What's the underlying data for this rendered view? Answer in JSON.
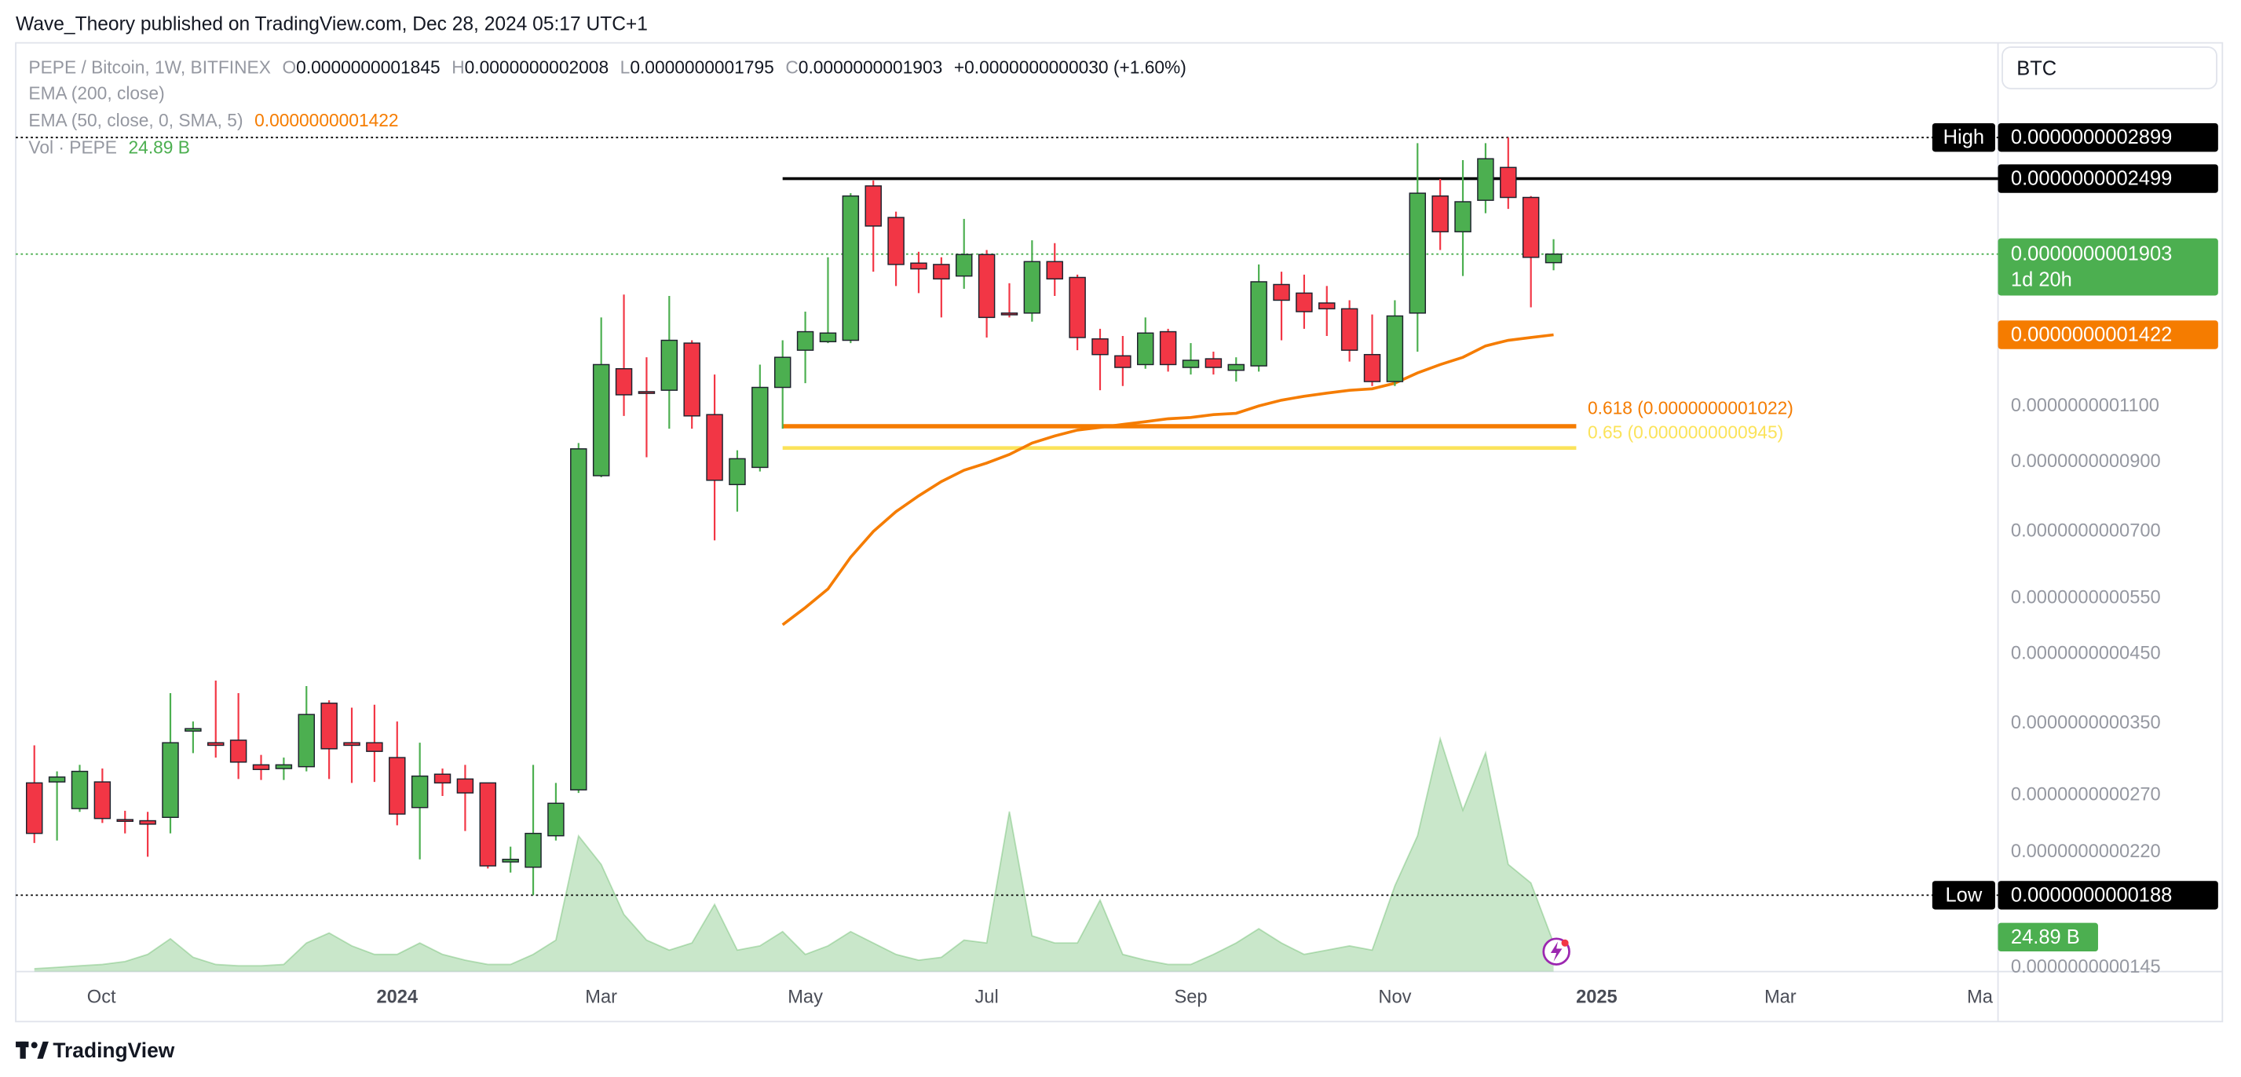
{
  "header": {
    "publisher": "Wave_Theory published on TradingView.com, Dec 28, 2024 05:17 UTC+1"
  },
  "toolbar": {
    "currency": "BTC"
  },
  "footer": {
    "brand": "TradingView"
  },
  "chart_data": {
    "type": "candlestick",
    "legend": {
      "symbol": "PEPE / Bitcoin, 1W, BITFINEX",
      "ohlc": [
        {
          "key": "O",
          "value": "0.0000000001845"
        },
        {
          "key": "H",
          "value": "0.0000000002008"
        },
        {
          "key": "L",
          "value": "0.0000000001795"
        },
        {
          "key": "C",
          "value": "0.0000000001903"
        }
      ],
      "change": "+0.0000000000030 (+1.60%)",
      "indicators": [
        {
          "name": "EMA (200, close)"
        },
        {
          "name": "EMA (50, close, 0, SMA, 5)",
          "value": "0.0000000001422"
        },
        {
          "name": "Vol · PEPE",
          "value": "24.89 B"
        }
      ]
    },
    "countdown": "1d 20h",
    "categories": [
      null,
      null,
      null,
      null,
      null,
      null,
      null,
      null,
      null,
      null,
      null,
      null,
      null,
      null,
      null,
      null,
      null,
      null,
      null,
      null,
      null,
      null,
      null,
      null,
      null,
      null,
      null,
      null,
      null,
      null,
      null,
      null,
      null,
      null,
      null,
      null,
      null,
      null,
      null,
      null,
      null,
      null,
      null,
      null,
      null,
      null,
      null,
      null,
      null,
      null,
      null,
      null,
      null,
      null,
      null,
      null,
      null,
      null,
      null,
      null,
      null,
      null,
      null,
      null,
      null,
      null,
      null,
      null
    ],
    "open": [
      2.82e-11,
      2.83e-11,
      2.57e-11,
      2.83e-11,
      2.47e-11,
      2.46e-11,
      2.49e-11,
      3.4e-11,
      3.26e-11,
      3.29e-11,
      3.01e-11,
      2.97e-11,
      2.99e-11,
      3.76e-11,
      3.26e-11,
      3.26e-11,
      3.09e-11,
      2.58e-11,
      2.91e-11,
      2.86e-11,
      2.82e-11,
      2.12e-11,
      2.08e-11,
      2.33e-11,
      2.75e-11,
      8.55e-11,
      1.258e-10,
      1.158e-10,
      1.164e-10,
      1.38e-10,
      1.066e-10,
      8.28e-11,
      8.81e-11,
      1.176e-10,
      1.345e-10,
      1.387e-10,
      1.394e-10,
      2.434e-10,
      2.172e-10,
      1.842e-10,
      1.833e-10,
      1.758e-10,
      1.9e-10,
      1.538e-10,
      1.538e-10,
      1.852e-10,
      1.749e-10,
      1.401e-10,
      1.318e-10,
      1.277e-10,
      1.438e-10,
      1.264e-10,
      1.304e-10,
      1.251e-10,
      1.271e-10,
      1.705e-10,
      1.653e-10,
      1.595e-10,
      1.562e-10,
      1.324e-10,
      1.201e-10,
      1.538e-10,
      2.347e-10,
      2.063e-10,
      2.311e-10,
      2.602e-10,
      2.335e-10,
      1.845e-10
    ],
    "high": [
      3.23e-11,
      2.94e-11,
      3.01e-11,
      2.97e-11,
      2.55e-11,
      2.54e-11,
      3.9e-11,
      3.52e-11,
      4.08e-11,
      3.9e-11,
      3.12e-11,
      3.09e-11,
      4e-11,
      3.8e-11,
      3.7e-11,
      3.74e-11,
      3.52e-11,
      3.26e-11,
      2.97e-11,
      3.01e-11,
      2.82e-11,
      2.24e-11,
      3.01e-11,
      2.82e-11,
      9.62e-11,
      1.514e-10,
      1.644e-10,
      1.311e-10,
      1.636e-10,
      1.394e-10,
      1.232e-10,
      9.37e-11,
      1.277e-10,
      1.394e-10,
      1.546e-10,
      1.881e-10,
      2.371e-10,
      2.483e-10,
      2.218e-10,
      1.919e-10,
      1.881e-10,
      2.161e-10,
      1.931e-10,
      1.713e-10,
      2e-10,
      1.98e-10,
      1.767e-10,
      1.453e-10,
      1.416e-10,
      1.514e-10,
      1.453e-10,
      1.38e-10,
      1.338e-10,
      1.311e-10,
      1.833e-10,
      1.786e-10,
      1.767e-10,
      1.696e-10,
      1.611e-10,
      1.53e-10,
      1.611e-10,
      2.84e-10,
      2.497e-10,
      2.672e-10,
      2.84e-10,
      2.899e-10,
      2.347e-10,
      2.008e-10
    ],
    "low": [
      2.27e-11,
      2.29e-11,
      2.54e-11,
      2.44e-11,
      2.35e-11,
      2.16e-11,
      2.35e-11,
      3.14e-11,
      3.09e-11,
      2.86e-11,
      2.85e-11,
      2.85e-11,
      2.94e-11,
      2.86e-11,
      2.82e-11,
      2.83e-11,
      2.42e-11,
      2.14e-11,
      2.69e-11,
      2.37e-11,
      2.07e-11,
      2.04e-11,
      1.88e-11,
      2.29e-11,
      2.72e-11,
      8.5e-11,
      1.061e-10,
      9.14e-11,
      1.013e-10,
      1.013e-10,
      6.77e-11,
      7.51e-11,
      8.68e-11,
      1.013e-10,
      1.194e-10,
      1.38e-10,
      1.38e-10,
      1.786e-10,
      1.696e-10,
      1.653e-10,
      1.514e-10,
      1.679e-10,
      1.408e-10,
      1.514e-10,
      1.491e-10,
      1.636e-10,
      1.345e-10,
      1.164e-10,
      1.182e-10,
      1.258e-10,
      1.245e-10,
      1.232e-10,
      1.232e-10,
      1.201e-10,
      1.245e-10,
      1.394e-10,
      1.453e-10,
      1.416e-10,
      1.291e-10,
      1.182e-10,
      1.182e-10,
      1.338e-10,
      1.931e-10,
      1.758e-10,
      2.206e-10,
      2.24e-10,
      1.57e-10,
      1.795e-10
    ],
    "close": [
      2.35e-11,
      2.88e-11,
      2.94e-11,
      2.48e-11,
      2.46e-11,
      2.43e-11,
      3.26e-11,
      3.43e-11,
      3.23e-11,
      3.04e-11,
      2.96e-11,
      3.01e-11,
      3.61e-11,
      3.19e-11,
      3.23e-11,
      3.16e-11,
      2.52e-11,
      2.89e-11,
      2.82e-11,
      2.72e-11,
      2.09e-11,
      2.14e-11,
      2.35e-11,
      2.62e-11,
      9.42e-11,
      1.277e-10,
      1.145e-10,
      1.152e-10,
      1.394e-10,
      1.061e-10,
      8.41e-11,
      9.09e-11,
      1.176e-10,
      1.311e-10,
      1.438e-10,
      1.431e-10,
      2.347e-10,
      2.106e-10,
      1.833e-10,
      1.804e-10,
      1.74e-10,
      1.9e-10,
      1.514e-10,
      1.53e-10,
      1.852e-10,
      1.74e-10,
      1.408e-10,
      1.324e-10,
      1.264e-10,
      1.431e-10,
      1.277e-10,
      1.297e-10,
      1.264e-10,
      1.277e-10,
      1.722e-10,
      1.611e-10,
      1.546e-10,
      1.562e-10,
      1.345e-10,
      1.201e-10,
      1.522e-10,
      2.371e-10,
      2.063e-10,
      2.299e-10,
      2.685e-10,
      2.335e-10,
      1.881e-10,
      1.903e-10
    ],
    "up_color": "#4caf50",
    "down_color": "#f23645",
    "ema": {
      "color": "#f57c00",
      "values": [
        null,
        null,
        null,
        null,
        null,
        null,
        null,
        null,
        null,
        null,
        null,
        null,
        null,
        null,
        null,
        null,
        null,
        null,
        null,
        null,
        null,
        null,
        null,
        null,
        null,
        null,
        null,
        null,
        null,
        null,
        null,
        null,
        null,
        4.99e-11,
        5.31e-11,
        5.68e-11,
        6.37e-11,
        6.99e-11,
        7.51e-11,
        7.95e-11,
        8.37e-11,
        8.72e-11,
        8.95e-11,
        9.23e-11,
        9.62e-11,
        9.87e-11,
        1.008e-10,
        1.018e-10,
        1.029e-10,
        1.039e-10,
        1.05e-10,
        1.055e-10,
        1.066e-10,
        1.071e-10,
        1.1e-10,
        1.123e-10,
        1.139e-10,
        1.152e-10,
        1.164e-10,
        1.17e-10,
        1.194e-10,
        1.239e-10,
        1.277e-10,
        1.311e-10,
        1.366e-10,
        1.394e-10,
        1.408e-10,
        1.422e-10
      ]
    },
    "volume": {
      "color": "#4caf50",
      "vlim": [
        0,
        248
      ],
      "values": [
        2.5,
        3.7,
        5.0,
        6.2,
        8.7,
        14.9,
        28.5,
        12.4,
        6.2,
        5.0,
        5.0,
        6.2,
        24.8,
        33.5,
        22.3,
        14.9,
        14.9,
        24.8,
        14.9,
        9.9,
        6.2,
        6.2,
        14.9,
        27.3,
        117.8,
        93.0,
        49.6,
        27.3,
        18.6,
        24.8,
        58.3,
        18.6,
        22.3,
        34.7,
        14.9,
        22.3,
        34.7,
        24.8,
        14.9,
        9.9,
        12.4,
        27.3,
        24.8,
        138.9,
        31.0,
        24.8,
        24.8,
        62.0,
        14.9,
        9.9,
        6.2,
        6.2,
        14.9,
        24.8,
        37.2,
        24.8,
        14.9,
        18.6,
        22.3,
        18.6,
        74.4,
        117.8,
        202.1,
        140.1,
        189.7,
        93.0,
        76.9,
        24.89
      ]
    },
    "log_scale": true,
    "grid": false,
    "ylim": [
      1.427e-11,
      4.08e-10
    ],
    "yticks": [
      {
        "value": 1.1e-10,
        "label": "0.0000000001100"
      },
      {
        "value": 9e-11,
        "label": "0.0000000000900"
      },
      {
        "value": 7e-11,
        "label": "0.0000000000700"
      },
      {
        "value": 5.5e-11,
        "label": "0.0000000000550"
      },
      {
        "value": 4.5e-11,
        "label": "0.0000000000450"
      },
      {
        "value": 3.5e-11,
        "label": "0.0000000000350"
      },
      {
        "value": 2.7e-11,
        "label": "0.0000000000270"
      },
      {
        "value": 2.2e-11,
        "label": "0.0000000000220"
      },
      {
        "value": 1.45e-11,
        "label": "0.0000000000145"
      }
    ],
    "xlim": [
      -0.82,
      86.6
    ],
    "xticks": [
      {
        "value": 2.96,
        "label": "Oct"
      },
      {
        "value": 16.0,
        "label": "2024"
      },
      {
        "value": 25.0,
        "label": "Mar"
      },
      {
        "value": 34.0,
        "label": "May"
      },
      {
        "value": 42.0,
        "label": "Jul"
      },
      {
        "value": 51.0,
        "label": "Sep"
      },
      {
        "value": 60.0,
        "label": "Nov"
      },
      {
        "value": 68.9,
        "label": "2025"
      },
      {
        "value": 77.0,
        "label": "Mar"
      },
      {
        "value": 85.8,
        "label": "Ma"
      }
    ],
    "price_lines": [
      {
        "name": "High",
        "value": 2.899e-10,
        "label": "0.0000000002899",
        "style": "dotted",
        "color": "#000000"
      },
      {
        "value": 2.499e-10,
        "label": "0.0000000002499",
        "style": "solid",
        "color": "#000000"
      },
      {
        "name": "Low",
        "value": 1.88e-11,
        "label": "0.0000000000188",
        "style": "dotted",
        "color": "#000000"
      }
    ],
    "fib_levels": [
      {
        "value": 1.022e-10,
        "label": "0.618 (0.0000000001022)",
        "color": "#f57c00"
      },
      {
        "value": 9.45e-11,
        "label": "0.65 (0.0000000000945)",
        "color": "#fbe35a"
      }
    ]
  }
}
